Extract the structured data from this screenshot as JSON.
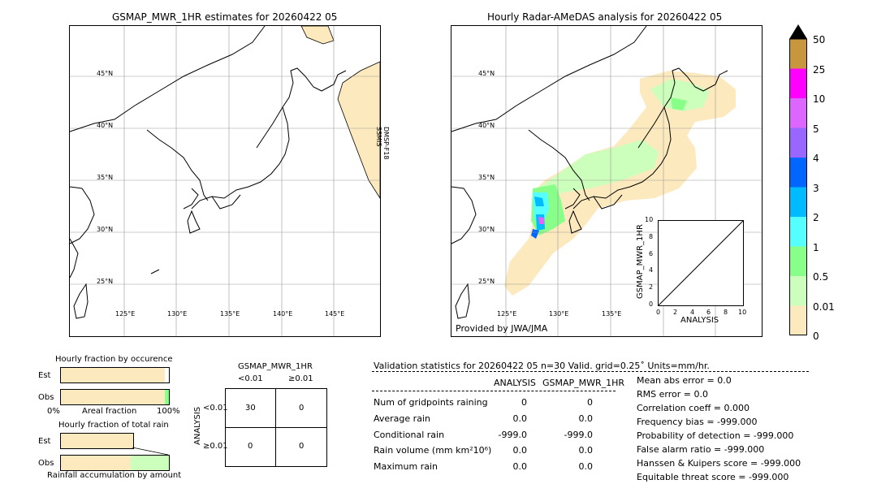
{
  "left_map": {
    "title": "GSMAP_MWR_1HR estimates for 20260422 05",
    "sensor_label": "DMSP-F18\nSSMIS",
    "lat_labels": [
      "45°N",
      "40°N",
      "35°N",
      "30°N",
      "25°N"
    ],
    "lon_labels": [
      "125°E",
      "130°E",
      "135°E",
      "140°E",
      "145°E"
    ]
  },
  "right_map": {
    "title": "Hourly Radar-AMeDAS analysis for 20260422 05",
    "lat_labels": [
      "45°N",
      "40°N",
      "35°N",
      "30°N",
      "25°N"
    ],
    "lon_labels": [
      "125°E",
      "130°E",
      "135°E"
    ],
    "credit": "Provided by JWA/JMA"
  },
  "inset": {
    "ylabel": "GSMAP_MWR_1HR",
    "xlabel": "ANALYSIS",
    "ticks": [
      "0",
      "2",
      "4",
      "6",
      "8",
      "10"
    ]
  },
  "colorbar": {
    "labels": [
      "50",
      "25",
      "10",
      "5",
      "4",
      "3",
      "2",
      "1",
      "0.5",
      "0.01",
      "0"
    ],
    "colors": [
      "#c8963c",
      "#ff00ff",
      "#dd66ff",
      "#9966ff",
      "#0066ff",
      "#00bbff",
      "#55ffff",
      "#88ff88",
      "#ccffbb",
      "#fde9be"
    ]
  },
  "occurrence": {
    "title": "Hourly fraction by occurence",
    "row_est": "Est",
    "row_obs": "Obs",
    "axis_left": "0%",
    "axis_mid": "Areal fraction",
    "axis_right": "100%"
  },
  "total_rain": {
    "title": "Hourly fraction of total rain",
    "row_est": "Est",
    "row_obs": "Obs",
    "footer": "Rainfall accumulation by amount"
  },
  "contingency": {
    "title": "GSMAP_MWR_1HR",
    "col1": "<0.01",
    "col2": "≥0.01",
    "row_axis": "ANALYSIS",
    "row1": "<0.01",
    "row2": "≥0.01",
    "cells": [
      "30",
      "0",
      "0",
      "0"
    ]
  },
  "validation": {
    "header": "Validation statistics for 20260422 05  n=30 Valid. grid=0.25˚ Units=mm/hr.",
    "col_analysis": "ANALYSIS",
    "col_gsmap": "GSMAP_MWR_1HR",
    "rows": [
      {
        "label": "Num of gridpoints raining",
        "a": "0",
        "g": "0"
      },
      {
        "label": "Average rain",
        "a": "0.0",
        "g": "0.0"
      },
      {
        "label": "Conditional rain",
        "a": "-999.0",
        "g": "-999.0"
      },
      {
        "label": "Rain volume (mm km²10⁶)",
        "a": "0.0",
        "g": "0.0"
      },
      {
        "label": "Maximum rain",
        "a": "0.0",
        "g": "0.0"
      }
    ],
    "scores": [
      "Mean abs error =    0.0",
      "RMS error =    0.0",
      "Correlation coeff =  0.000",
      "Frequency bias = -999.000",
      "Probability of detection = -999.000",
      "False alarm ratio = -999.000",
      "Hanssen & Kuipers score = -999.000",
      "Equitable threat score = -999.000"
    ]
  }
}
